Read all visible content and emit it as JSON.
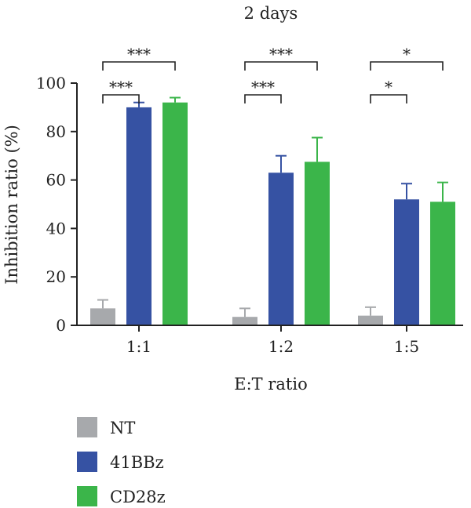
{
  "chart_data": {
    "type": "bar",
    "title": "2 days",
    "xlabel": "E:T ratio",
    "ylabel": "Inhibition ratio (%)",
    "ylim": [
      0,
      100
    ],
    "yticks": [
      "0",
      "20",
      "40",
      "60",
      "80",
      "100"
    ],
    "categories": [
      "1:1",
      "1:2",
      "1:5"
    ],
    "series": [
      {
        "name": "NT",
        "color": "#a7a9ac",
        "values": [
          7,
          3.5,
          4
        ],
        "errors": [
          3.5,
          3.5,
          3.5
        ]
      },
      {
        "name": "41BBz",
        "color": "#3652a3",
        "values": [
          90,
          63,
          52
        ],
        "errors": [
          2,
          7,
          6.5
        ]
      },
      {
        "name": "CD28z",
        "color": "#3bb54a",
        "values": [
          92,
          67.5,
          51
        ],
        "errors": [
          2,
          10,
          8
        ]
      }
    ],
    "significance": [
      {
        "category": "1:1",
        "from": "NT",
        "to": "41BBz",
        "label": "***",
        "level": "low"
      },
      {
        "category": "1:1",
        "from": "NT",
        "to": "CD28z",
        "label": "***",
        "level": "high"
      },
      {
        "category": "1:2",
        "from": "NT",
        "to": "41BBz",
        "label": "***",
        "level": "low"
      },
      {
        "category": "1:2",
        "from": "NT",
        "to": "CD28z",
        "label": "***",
        "level": "high"
      },
      {
        "category": "1:5",
        "from": "NT",
        "to": "41BBz",
        "label": "*",
        "level": "low"
      },
      {
        "category": "1:5",
        "from": "NT",
        "to": "CD28z",
        "label": "*",
        "level": "high"
      }
    ],
    "legend_position": "bottom-left",
    "grid": false
  }
}
